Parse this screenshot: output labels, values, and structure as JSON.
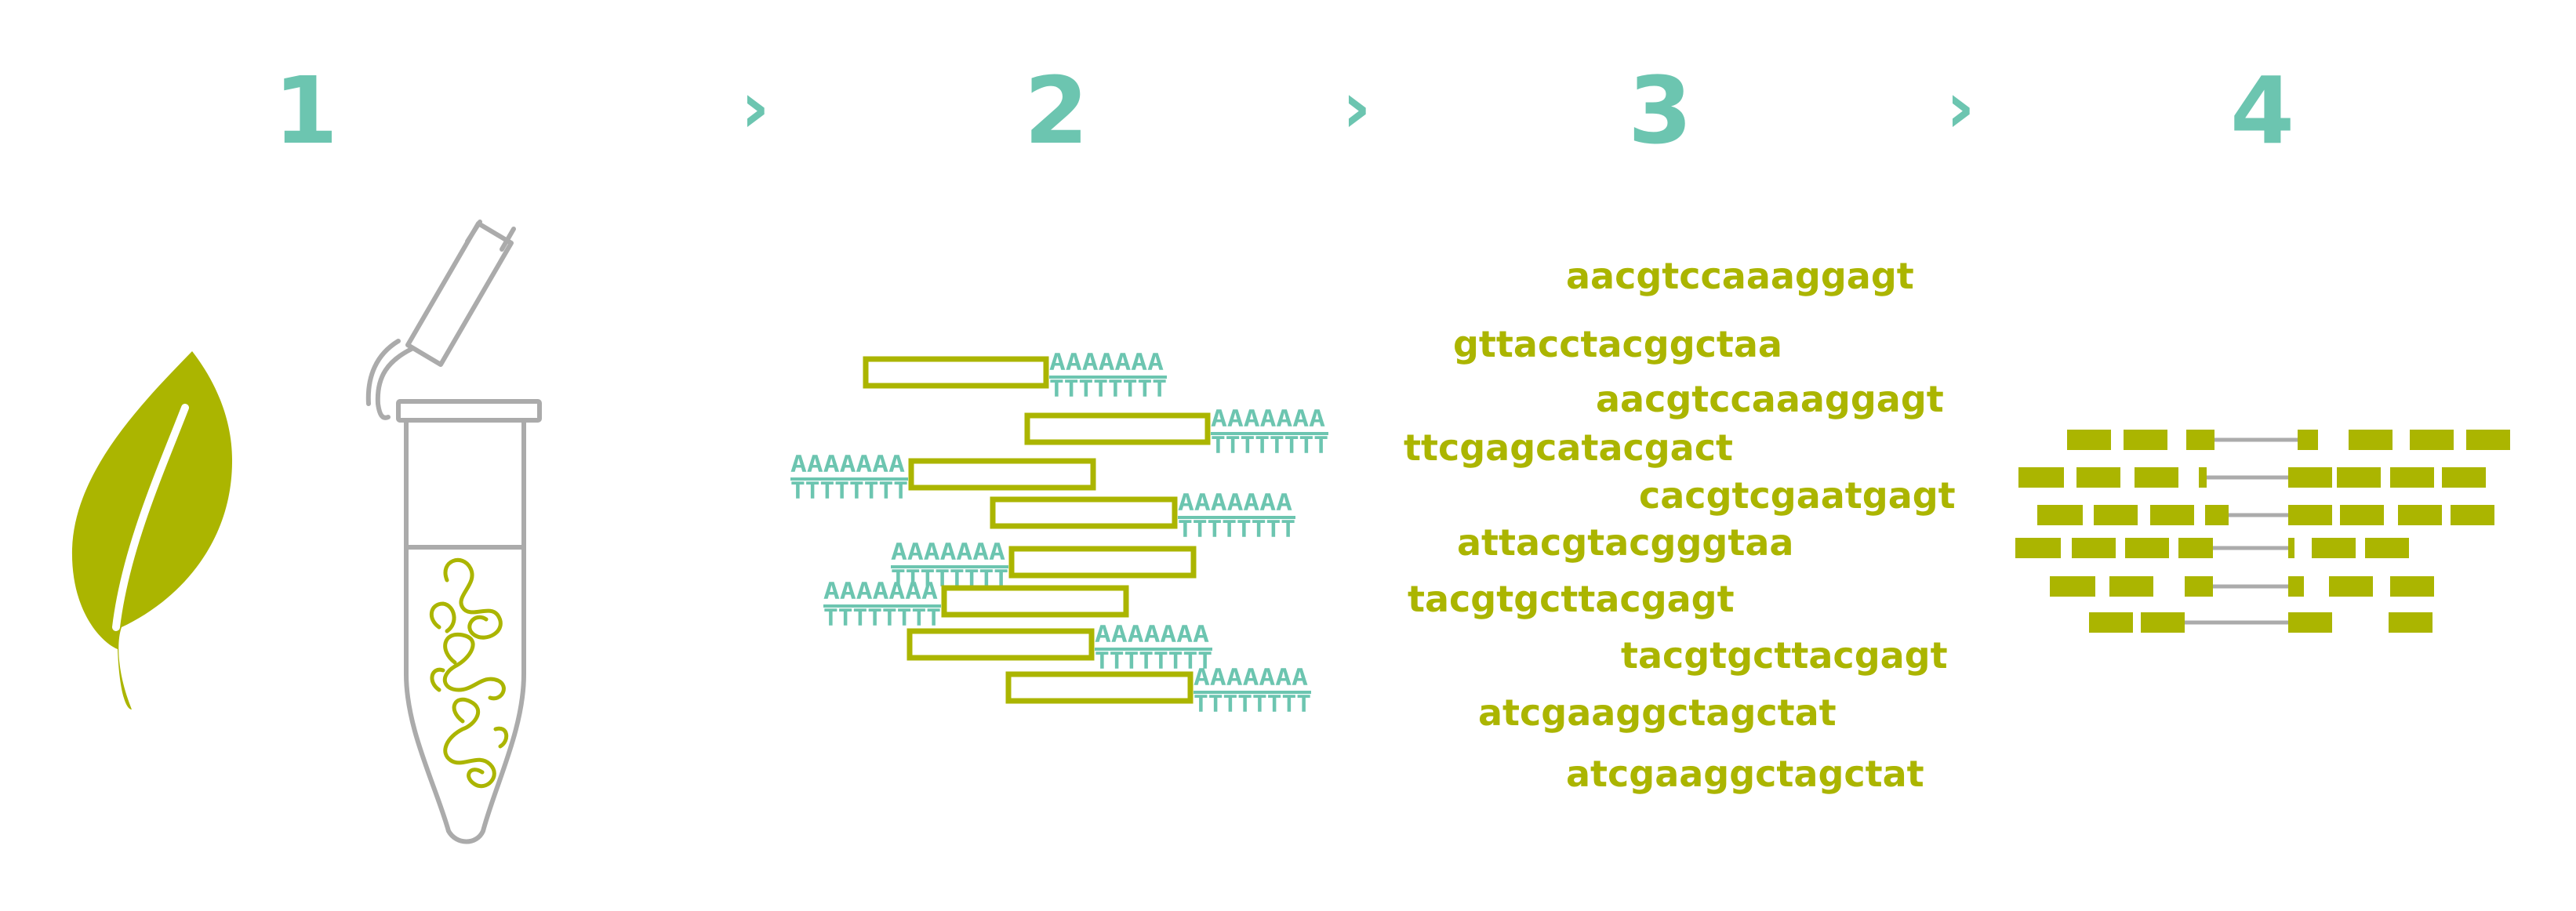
{
  "colors": {
    "teal": "#6CC5B0",
    "olive": "#ABB500",
    "gray": "#ABABAB"
  },
  "steps": [
    {
      "number": "1"
    },
    {
      "number": "2"
    },
    {
      "number": "3"
    },
    {
      "number": "4"
    }
  ],
  "arrow_glyph": "›",
  "step1": {
    "icons": [
      "leaf-icon",
      "tube-icon",
      "rna-strand-icon"
    ]
  },
  "step2": {
    "poly_a": "AAAAAAA",
    "poly_t": "TTTTTTTT"
  },
  "step3": {
    "sequences": [
      "aacgtccaaaggagt",
      "gttacctacggctaa",
      "aacgtccaaaggagt",
      "ttcgagcatacgact",
      "cacgtcgaatgagt",
      "attacgtacgggtaa",
      "tacgtgcttacgagt",
      "tacgtgcttacgagt",
      "atcgaaggctagctat",
      "atcgaaggctagctat"
    ]
  },
  "step4": {
    "icons": [
      "exon-block-icon",
      "intron-line-icon"
    ]
  }
}
